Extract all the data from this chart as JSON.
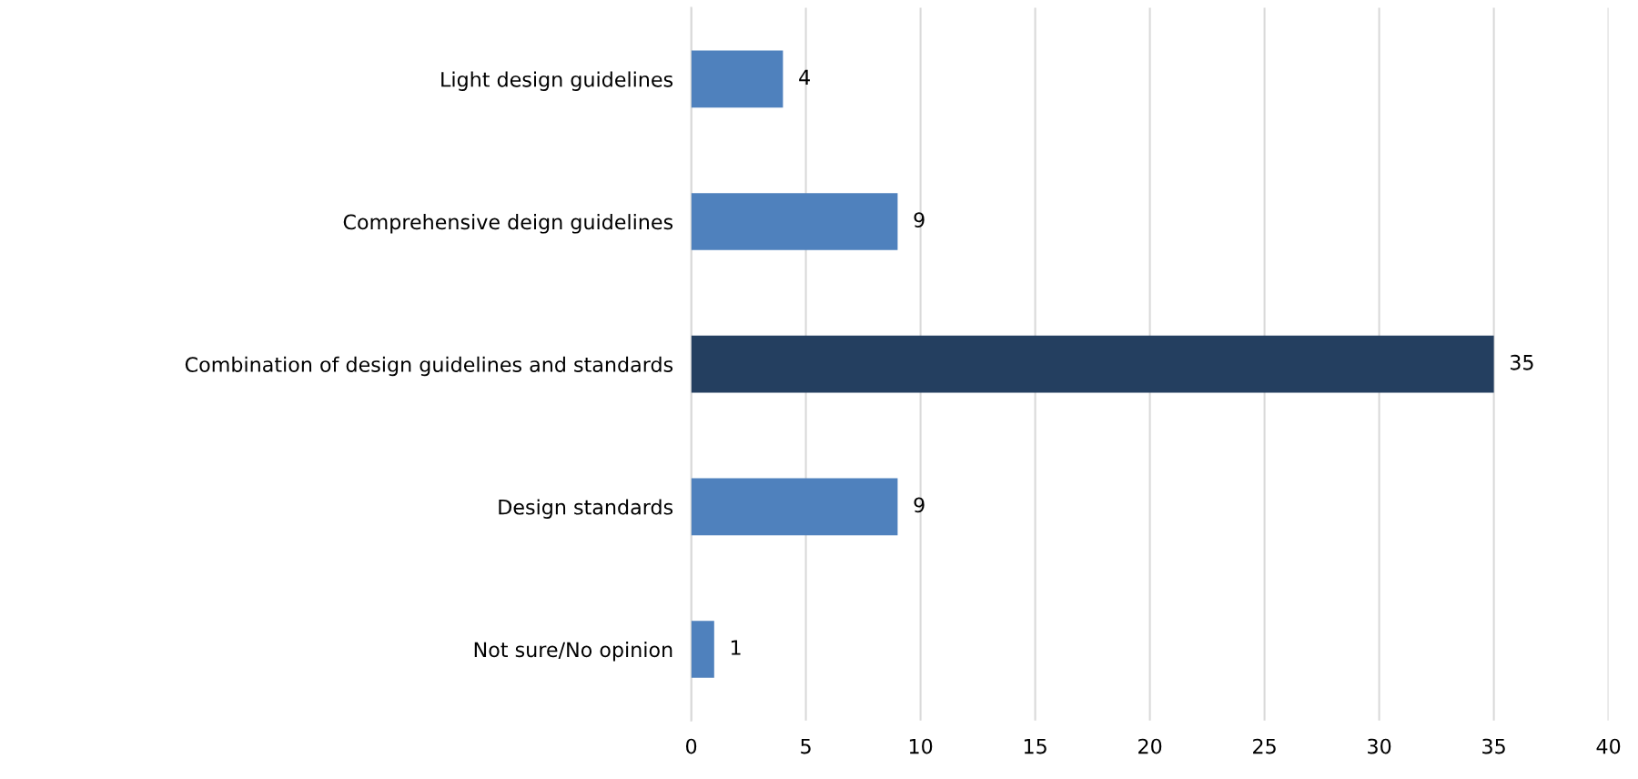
{
  "chart_data": {
    "type": "bar",
    "orientation": "horizontal",
    "categories": [
      "Light design guidelines",
      "Comprehensive deign guidelines",
      "Combination of design guidelines and standards",
      "Design standards",
      "Not sure/No opinion"
    ],
    "values": [
      4,
      9,
      35,
      9,
      1
    ],
    "colors": [
      "#4f81bd",
      "#4f81bd",
      "#243f60",
      "#4f81bd",
      "#4f81bd"
    ],
    "xlim": [
      0,
      40
    ],
    "xticks": [
      0,
      5,
      10,
      15,
      20,
      25,
      30,
      35,
      40
    ],
    "grid": "x",
    "data_labels": true
  }
}
